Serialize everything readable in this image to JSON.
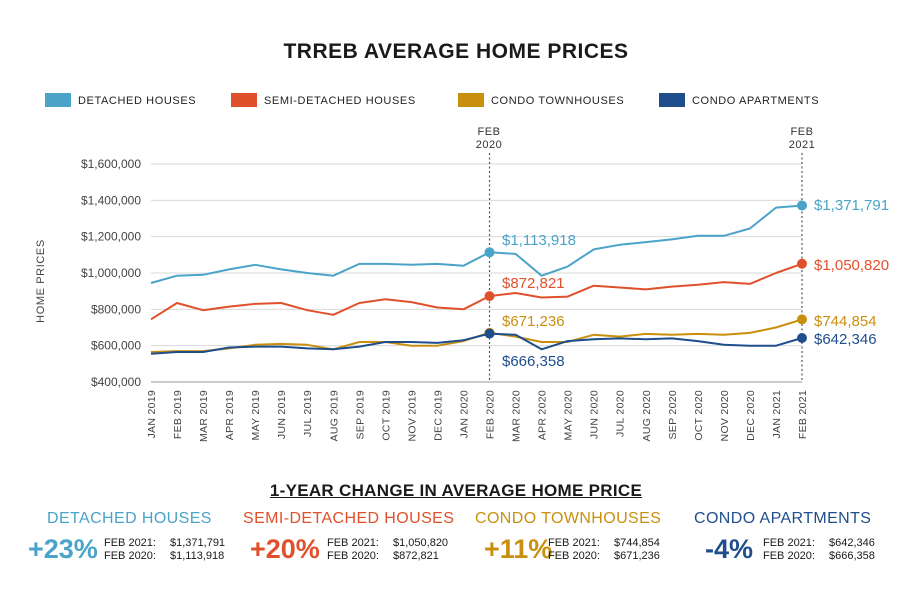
{
  "title": "TRREB AVERAGE HOME PRICES",
  "colors": {
    "detached": "#4aa3c8",
    "semi": "#e0502b",
    "townhouse": "#c9900f",
    "apartment": "#1f4e8c"
  },
  "marker_labels": {
    "feb2020_line1": "FEB",
    "feb2020_line2": "2020",
    "feb2021_line1": "FEB",
    "feb2021_line2": "2021"
  },
  "callouts": {
    "detached_2020": "$1,113,918",
    "semi_2020": "$872,821",
    "townhouse_2020": "$671,236",
    "apartment_2020": "$666,358",
    "detached_2021": "$1,371,791",
    "semi_2021": "$1,050,820",
    "townhouse_2021": "$744,854",
    "apartment_2021": "$642,346"
  },
  "chart_data": {
    "type": "line",
    "ylabel": "HOME PRICES",
    "xlabel": "",
    "ylim": [
      400000,
      1600000
    ],
    "yticks": [
      400000,
      600000,
      800000,
      1000000,
      1200000,
      1400000,
      1600000
    ],
    "ytick_labels": [
      "$400,000",
      "$600,000",
      "$800,000",
      "$1,000,000",
      "$1,200,000",
      "$1,400,000",
      "$1,600,000"
    ],
    "legend_position": "top",
    "grid": "horizontal",
    "categories": [
      "JAN 2019",
      "FEB 2019",
      "MAR 2019",
      "APR 2019",
      "MAY 2019",
      "JUN 2019",
      "JUL 2019",
      "AUG 2019",
      "SEP 2019",
      "OCT 2019",
      "NOV 2019",
      "DEC 2019",
      "JAN 2020",
      "FEB 2020",
      "MAR 2020",
      "APR 2020",
      "MAY 2020",
      "JUN 2020",
      "JUL 2020",
      "AUG 2020",
      "SEP 2020",
      "OCT 2020",
      "NOV 2020",
      "DEC 2020",
      "JAN 2021",
      "FEB 2021"
    ],
    "series": [
      {
        "name": "DETACHED HOUSES",
        "key": "detached",
        "values": [
          945000,
          985000,
          990000,
          1020000,
          1045000,
          1020000,
          1000000,
          985000,
          1050000,
          1050000,
          1045000,
          1050000,
          1040000,
          1113918,
          1105000,
          985000,
          1035000,
          1130000,
          1155000,
          1170000,
          1185000,
          1205000,
          1205000,
          1245000,
          1360000,
          1371791
        ]
      },
      {
        "name": "SEMI-DETACHED HOUSES",
        "key": "semi",
        "values": [
          745000,
          835000,
          795000,
          815000,
          830000,
          835000,
          795000,
          770000,
          835000,
          855000,
          840000,
          810000,
          800000,
          872821,
          890000,
          865000,
          870000,
          930000,
          920000,
          910000,
          925000,
          935000,
          950000,
          940000,
          1000000,
          1050820
        ]
      },
      {
        "name": "CONDO TOWNHOUSES",
        "key": "townhouse",
        "values": [
          565000,
          570000,
          570000,
          585000,
          605000,
          610000,
          605000,
          580000,
          620000,
          620000,
          600000,
          600000,
          625000,
          671236,
          650000,
          620000,
          620000,
          660000,
          650000,
          665000,
          660000,
          665000,
          660000,
          670000,
          700000,
          744854
        ]
      },
      {
        "name": "CONDO APARTMENTS",
        "key": "apartment",
        "values": [
          555000,
          565000,
          565000,
          590000,
          595000,
          595000,
          585000,
          580000,
          595000,
          620000,
          620000,
          615000,
          630000,
          666358,
          660000,
          580000,
          625000,
          635000,
          640000,
          635000,
          640000,
          625000,
          605000,
          600000,
          600000,
          642346
        ]
      }
    ]
  },
  "summary": {
    "title": "1-YEAR CHANGE IN AVERAGE HOME PRICE",
    "items": [
      {
        "category": "DETACHED HOUSES",
        "pct": "+23%",
        "label_2021": "FEB 2021:",
        "val_2021": "$1,371,791",
        "label_2020": "FEB 2020:",
        "val_2020": "$1,113,918"
      },
      {
        "category": "SEMI-DETACHED HOUSES",
        "pct": "+20%",
        "label_2021": "FEB 2021:",
        "val_2021": "$1,050,820",
        "label_2020": "FEB 2020:",
        "val_2020": "$872,821"
      },
      {
        "category": "CONDO TOWNHOUSES",
        "pct": "+11%",
        "label_2021": "FEB 2021:",
        "val_2021": "$744,854",
        "label_2020": "FEB 2020:",
        "val_2020": "$671,236"
      },
      {
        "category": "CONDO APARTMENTS",
        "pct": "-4%",
        "label_2021": "FEB 2021:",
        "val_2021": "$642,346",
        "label_2020": "FEB 2020:",
        "val_2020": "$666,358"
      }
    ]
  }
}
